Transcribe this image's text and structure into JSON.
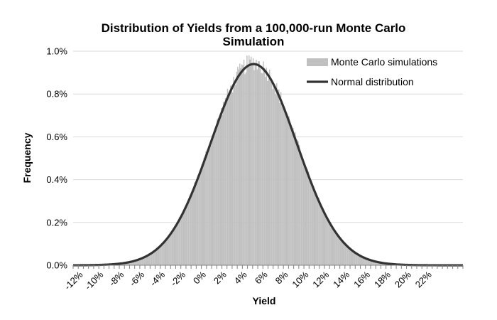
{
  "chart_data": {
    "type": "bar",
    "title_line1": "Distribution of Yields from a 100,000-run Monte Carlo",
    "title_line2": "Simulation",
    "xlabel": "Yield",
    "ylabel": "Frequency",
    "x_tick_labels": [
      "-12%",
      "-10%",
      "-8%",
      "-6%",
      "-4%",
      "-2%",
      "0%",
      "2%",
      "4%",
      "6%",
      "8%",
      "10%",
      "12%",
      "14%",
      "16%",
      "18%",
      "20%",
      "22%"
    ],
    "y_tick_labels": [
      "0.0%",
      "0.2%",
      "0.4%",
      "0.6%",
      "0.8%",
      "1.0%"
    ],
    "xlim": [
      -13,
      25
    ],
    "ylim": [
      0,
      1.0
    ],
    "grid": true,
    "legend_position": "top-right",
    "series": [
      {
        "name": "Monte Carlo simulations",
        "kind": "histogram",
        "color": "#c0c0c0",
        "bin_width_pct": 0.1,
        "mean_pct": 4.6,
        "sd_pct": 4.2,
        "peak_freq_pct": 0.95
      },
      {
        "name": "Normal distribution",
        "kind": "line",
        "color": "#333333",
        "mean_pct": 4.6,
        "sd_pct": 4.2,
        "peak_freq_pct": 0.94
      }
    ]
  }
}
